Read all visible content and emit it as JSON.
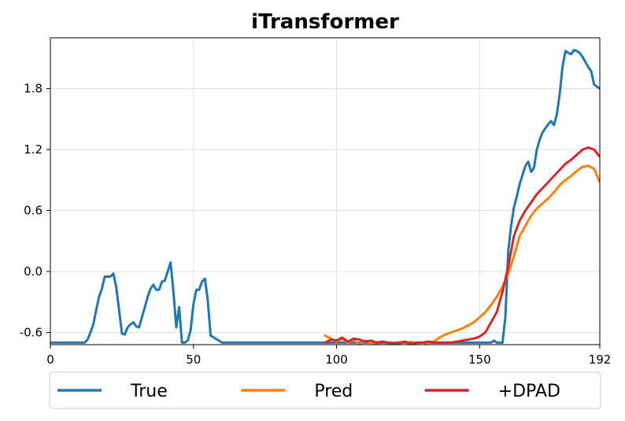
{
  "chart_data": {
    "type": "line",
    "title": "iTransformer",
    "xlabel": "",
    "ylabel": "",
    "xlim": [
      0,
      192
    ],
    "ylim": [
      -0.72,
      2.3
    ],
    "xticks": [
      0,
      50,
      100,
      150,
      192
    ],
    "yticks": [
      -0.6,
      0.0,
      0.6,
      1.2,
      1.8
    ],
    "ytick_labels": [
      "-0.6",
      "0.0",
      "0.6",
      "1.2",
      "1.8"
    ],
    "grid": true,
    "legend_position": "bottom",
    "series": [
      {
        "name": "True",
        "color": "#1f77b4",
        "x": [
          0,
          5,
          10,
          12,
          13,
          14,
          15,
          16,
          17,
          18,
          19,
          20,
          21,
          22,
          23,
          24,
          25,
          26,
          27,
          28,
          29,
          30,
          31,
          32,
          33,
          34,
          35,
          36,
          37,
          38,
          39,
          40,
          41,
          42,
          43,
          44,
          45,
          46,
          47,
          48,
          49,
          50,
          51,
          52,
          53,
          54,
          55,
          56,
          60,
          80,
          100,
          120,
          140,
          150,
          154,
          155,
          156,
          157,
          158,
          159,
          160,
          161,
          162,
          163,
          164,
          165,
          166,
          167,
          168,
          169,
          170,
          171,
          172,
          173,
          174,
          175,
          176,
          177,
          178,
          179,
          180,
          181,
          182,
          183,
          184,
          185,
          186,
          187,
          188,
          189,
          190,
          191,
          192
        ],
        "values": [
          -0.7,
          -0.7,
          -0.7,
          -0.7,
          -0.67,
          -0.6,
          -0.52,
          -0.38,
          -0.25,
          -0.17,
          -0.05,
          -0.05,
          -0.05,
          -0.02,
          -0.15,
          -0.38,
          -0.61,
          -0.62,
          -0.55,
          -0.52,
          -0.5,
          -0.54,
          -0.55,
          -0.45,
          -0.35,
          -0.25,
          -0.17,
          -0.13,
          -0.18,
          -0.18,
          -0.1,
          -0.09,
          0.0,
          0.09,
          -0.2,
          -0.55,
          -0.35,
          -0.7,
          -0.7,
          -0.68,
          -0.58,
          -0.32,
          -0.18,
          -0.18,
          -0.1,
          -0.07,
          -0.28,
          -0.63,
          -0.7,
          -0.7,
          -0.7,
          -0.7,
          -0.7,
          -0.7,
          -0.7,
          -0.68,
          -0.7,
          -0.7,
          -0.7,
          -0.45,
          0.2,
          0.45,
          0.63,
          0.74,
          0.86,
          0.95,
          1.04,
          1.08,
          0.98,
          1.02,
          1.2,
          1.3,
          1.37,
          1.41,
          1.45,
          1.48,
          1.44,
          1.55,
          1.75,
          2.02,
          2.17,
          2.15,
          2.14,
          2.18,
          2.17,
          2.15,
          2.11,
          2.06,
          2.01,
          1.97,
          1.84,
          1.82,
          1.8
        ]
      },
      {
        "name": "Pred",
        "color": "#ff7f0e",
        "x": [
          96,
          98,
          100,
          102,
          104,
          106,
          108,
          110,
          112,
          114,
          116,
          118,
          120,
          122,
          124,
          126,
          128,
          130,
          132,
          134,
          136,
          138,
          140,
          142,
          144,
          146,
          148,
          150,
          152,
          154,
          156,
          158,
          160,
          162,
          164,
          166,
          168,
          170,
          172,
          174,
          176,
          178,
          180,
          182,
          184,
          186,
          188,
          190,
          192
        ],
        "values": [
          -0.63,
          -0.66,
          -0.69,
          -0.66,
          -0.7,
          -0.67,
          -0.72,
          -0.68,
          -0.7,
          -0.71,
          -0.73,
          -0.72,
          -0.7,
          -0.72,
          -0.74,
          -0.69,
          -0.72,
          -0.75,
          -0.7,
          -0.69,
          -0.65,
          -0.62,
          -0.6,
          -0.58,
          -0.56,
          -0.53,
          -0.5,
          -0.45,
          -0.4,
          -0.33,
          -0.25,
          -0.15,
          -0.02,
          0.15,
          0.35,
          0.45,
          0.55,
          0.62,
          0.67,
          0.72,
          0.78,
          0.85,
          0.9,
          0.94,
          0.99,
          1.03,
          1.04,
          1.01,
          0.88
        ]
      },
      {
        "name": "+DPAD",
        "color": "#d62728",
        "x": [
          96,
          98,
          100,
          102,
          104,
          106,
          108,
          110,
          112,
          114,
          116,
          118,
          120,
          122,
          124,
          126,
          128,
          130,
          132,
          134,
          136,
          138,
          140,
          142,
          144,
          146,
          148,
          150,
          152,
          154,
          156,
          158,
          160,
          162,
          164,
          166,
          168,
          170,
          172,
          174,
          176,
          178,
          180,
          182,
          184,
          186,
          188,
          190,
          192
        ],
        "values": [
          -0.7,
          -0.67,
          -0.68,
          -0.65,
          -0.69,
          -0.66,
          -0.67,
          -0.69,
          -0.68,
          -0.7,
          -0.69,
          -0.7,
          -0.71,
          -0.7,
          -0.69,
          -0.71,
          -0.7,
          -0.7,
          -0.69,
          -0.7,
          -0.7,
          -0.7,
          -0.7,
          -0.69,
          -0.68,
          -0.67,
          -0.66,
          -0.64,
          -0.6,
          -0.5,
          -0.4,
          -0.2,
          0.05,
          0.35,
          0.5,
          0.6,
          0.68,
          0.76,
          0.82,
          0.88,
          0.94,
          1.0,
          1.06,
          1.1,
          1.15,
          1.2,
          1.22,
          1.2,
          1.13
        ]
      }
    ]
  }
}
